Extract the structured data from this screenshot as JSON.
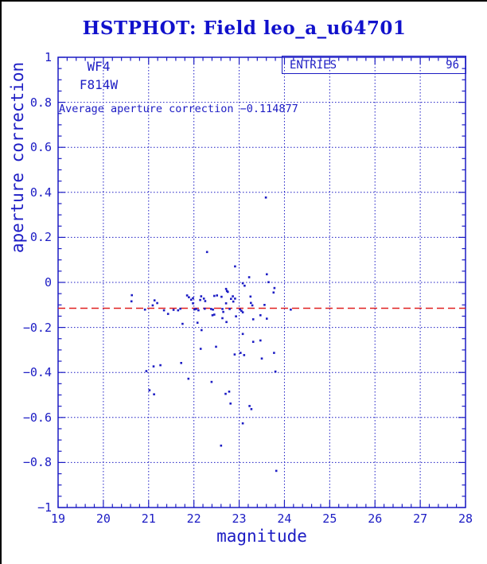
{
  "window": {
    "title": "HSTPHOT: Field leo_a_u64701"
  },
  "colors": {
    "plot_blue": "#1c1cc4",
    "title_blue": "#1111cc",
    "reference_red": "#e02020",
    "background": "#ffffff",
    "frame_border": "#000000"
  },
  "entries_box": {
    "label": "ENTRIES",
    "value": "96"
  },
  "annotations": {
    "camera": "WF4",
    "filter": "F814W",
    "average_text": "Average aperture correction −0.114877"
  },
  "chart_data": {
    "type": "scatter",
    "title": "HSTPHOT: Field leo_a_u64701",
    "xlabel": "magnitude",
    "ylabel": "aperture correction",
    "xlim": [
      19,
      28
    ],
    "ylim": [
      -1,
      1
    ],
    "x_major_ticks": [
      19,
      20,
      21,
      22,
      23,
      24,
      25,
      26,
      27,
      28
    ],
    "x_tick_labels": [
      "19",
      "20",
      "21",
      "22",
      "23",
      "24",
      "25",
      "26",
      "27",
      "28"
    ],
    "x_minor_step": 0.2,
    "y_major_ticks": [
      1,
      0.8,
      0.6,
      0.4,
      0.2,
      0,
      -0.2,
      -0.4,
      -0.6,
      -0.8,
      -1
    ],
    "y_tick_labels": [
      "1",
      "0.8",
      "0.6",
      "0.4",
      "0.2",
      "0",
      "−0.2",
      "−0.4",
      "−0.6",
      "−0.8",
      "−1"
    ],
    "y_minor_step": 0.05,
    "grid": "dotted blue lines at every x integer and every 0.2 in y",
    "legend_position": "none",
    "marker": "small blue square",
    "entries": 96,
    "reference_line": {
      "y": -0.114877,
      "style": "dashed",
      "color": "#e02020",
      "label": "Average aperture correction −0.114877"
    },
    "points": [
      [
        23.59,
        0.377
      ],
      [
        22.29,
        0.135
      ],
      [
        22.91,
        0.071
      ],
      [
        23.22,
        0.023
      ],
      [
        23.61,
        0.036
      ],
      [
        23.65,
        0.001
      ],
      [
        23.08,
        -0.004
      ],
      [
        23.12,
        -0.015
      ],
      [
        22.71,
        -0.029
      ],
      [
        23.78,
        -0.025
      ],
      [
        23.76,
        -0.045
      ],
      [
        22.73,
        -0.038
      ],
      [
        20.63,
        -0.057
      ],
      [
        20.62,
        -0.084
      ],
      [
        21.13,
        -0.08
      ],
      [
        21.19,
        -0.092
      ],
      [
        21.09,
        -0.102
      ],
      [
        21.85,
        -0.058
      ],
      [
        21.89,
        -0.066
      ],
      [
        21.94,
        -0.077
      ],
      [
        21.98,
        -0.07
      ],
      [
        22.14,
        -0.078
      ],
      [
        22.16,
        -0.062
      ],
      [
        22.22,
        -0.072
      ],
      [
        22.25,
        -0.083
      ],
      [
        22.45,
        -0.06
      ],
      [
        22.51,
        -0.058
      ],
      [
        22.61,
        -0.064
      ],
      [
        22.75,
        -0.042
      ],
      [
        22.82,
        -0.073
      ],
      [
        22.86,
        -0.062
      ],
      [
        22.87,
        -0.085
      ],
      [
        22.71,
        -0.093
      ],
      [
        22.91,
        -0.072
      ],
      [
        23.25,
        -0.063
      ],
      [
        23.26,
        -0.091
      ],
      [
        23.29,
        -0.102
      ],
      [
        23.56,
        -0.1
      ],
      [
        21.98,
        -0.093
      ],
      [
        20.92,
        -0.121
      ],
      [
        21.34,
        -0.124
      ],
      [
        21.43,
        -0.14
      ],
      [
        21.55,
        -0.122
      ],
      [
        21.65,
        -0.124
      ],
      [
        21.7,
        -0.117
      ],
      [
        22.01,
        -0.12
      ],
      [
        22.05,
        -0.118
      ],
      [
        22.1,
        -0.124
      ],
      [
        22.24,
        -0.117
      ],
      [
        22.38,
        -0.118
      ],
      [
        22.42,
        -0.121
      ],
      [
        22.45,
        -0.143
      ],
      [
        22.63,
        -0.118
      ],
      [
        22.65,
        -0.131
      ],
      [
        22.79,
        -0.118
      ],
      [
        23.02,
        -0.12
      ],
      [
        23.05,
        -0.126
      ],
      [
        23.08,
        -0.133
      ],
      [
        24.14,
        -0.121
      ],
      [
        23.47,
        -0.146
      ],
      [
        22.41,
        -0.146
      ],
      [
        22.63,
        -0.159
      ],
      [
        22.72,
        -0.176
      ],
      [
        22.93,
        -0.151
      ],
      [
        23.31,
        -0.164
      ],
      [
        23.61,
        -0.161
      ],
      [
        21.75,
        -0.184
      ],
      [
        22.08,
        -0.179
      ],
      [
        22.17,
        -0.212
      ],
      [
        23.08,
        -0.229
      ],
      [
        23.31,
        -0.264
      ],
      [
        23.47,
        -0.258
      ],
      [
        22.15,
        -0.295
      ],
      [
        22.49,
        -0.286
      ],
      [
        22.9,
        -0.32
      ],
      [
        23.03,
        -0.313
      ],
      [
        23.11,
        -0.323
      ],
      [
        23.77,
        -0.313
      ],
      [
        23.5,
        -0.338
      ],
      [
        20.95,
        -0.394
      ],
      [
        21.11,
        -0.373
      ],
      [
        21.26,
        -0.368
      ],
      [
        21.72,
        -0.358
      ],
      [
        21.88,
        -0.428
      ],
      [
        22.39,
        -0.442
      ],
      [
        22.7,
        -0.495
      ],
      [
        22.78,
        -0.485
      ],
      [
        21.02,
        -0.479
      ],
      [
        21.12,
        -0.497
      ],
      [
        23.8,
        -0.396
      ],
      [
        22.81,
        -0.538
      ],
      [
        23.23,
        -0.549
      ],
      [
        23.27,
        -0.563
      ],
      [
        23.08,
        -0.626
      ],
      [
        22.6,
        -0.725
      ],
      [
        23.82,
        -0.837
      ]
    ]
  }
}
